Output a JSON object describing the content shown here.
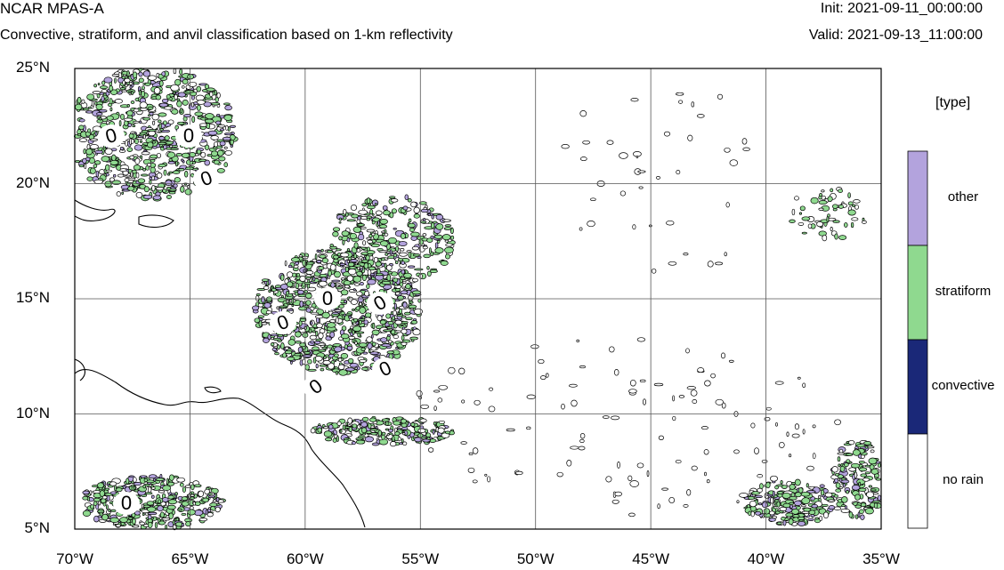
{
  "header": {
    "title": "NCAR MPAS-A",
    "subtitle": "Convective, stratiform, and anvil classification based on 1-km reflectivity",
    "init": "Init: 2021-09-11_00:00:00",
    "valid": "Valid: 2021-09-13_11:00:00"
  },
  "map": {
    "lon_range": [
      -70,
      -35
    ],
    "lat_range": [
      5,
      25
    ],
    "x_ticks": [
      {
        "lon": -70,
        "label": "70°W"
      },
      {
        "lon": -65,
        "label": "65°W"
      },
      {
        "lon": -60,
        "label": "60°W"
      },
      {
        "lon": -55,
        "label": "55°W"
      },
      {
        "lon": -50,
        "label": "50°W"
      },
      {
        "lon": -45,
        "label": "45°W"
      },
      {
        "lon": -40,
        "label": "40°W"
      },
      {
        "lon": -35,
        "label": "35°W"
      }
    ],
    "y_ticks": [
      {
        "lat": 25,
        "label": "25°N"
      },
      {
        "lat": 20,
        "label": "20°N"
      },
      {
        "lat": 15,
        "label": "15°N"
      },
      {
        "lat": 10,
        "label": "10°N"
      },
      {
        "lat": 5,
        "label": "5°N"
      }
    ],
    "contour_label": "0",
    "colors": {
      "stratiform": "#8fd98f",
      "other": "#b3a3dd",
      "convective": "#1a2878",
      "no_rain": "#ffffff",
      "line": "#000000"
    }
  },
  "legend": {
    "title": "[type]",
    "entries": [
      {
        "label": "other",
        "color": "#b3a3dd"
      },
      {
        "label": "stratiform",
        "color": "#8fd98f"
      },
      {
        "label": "convective",
        "color": "#1a2878"
      },
      {
        "label": "no rain",
        "color": "#ffffff"
      }
    ]
  }
}
